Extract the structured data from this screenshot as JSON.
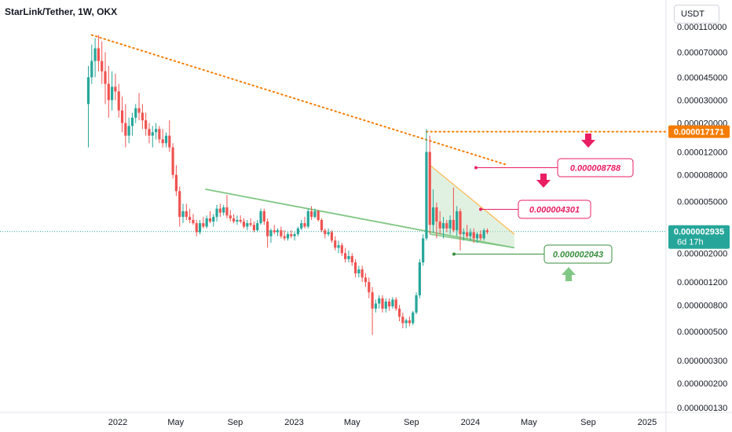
{
  "header": {
    "symbol_title": "StarLink/Tether, 1W, OKX",
    "currency": "USDT"
  },
  "colors": {
    "up": "#26a69a",
    "down": "#ef5350",
    "pink": "#e91e63",
    "green": "#388e3c",
    "orange": "#f57c00",
    "trendline": "#81c784",
    "price_line": "#26a69a"
  },
  "chart_data": {
    "type": "candlestick",
    "title": "",
    "y_scale": "log",
    "ylim": [
      1.15e-07,
      0.000125
    ],
    "y_ticks": [
      {
        "value": 0.00011,
        "label": "0.000110000"
      },
      {
        "value": 7e-05,
        "label": "0.000070000"
      },
      {
        "value": 4.5e-05,
        "label": "0.000045000"
      },
      {
        "value": 3e-05,
        "label": "0.000030000"
      },
      {
        "value": 2e-05,
        "label": "0.000020000"
      },
      {
        "value": 1.2e-05,
        "label": "0.000012000"
      },
      {
        "value": 8e-06,
        "label": "0.000008000"
      },
      {
        "value": 5e-06,
        "label": "0.000005000"
      },
      {
        "value": 2e-06,
        "label": "0.000002000"
      },
      {
        "value": 1.2e-06,
        "label": "0.000001200"
      },
      {
        "value": 8e-07,
        "label": "0.000000800"
      },
      {
        "value": 5e-07,
        "label": "0.000000500"
      },
      {
        "value": 3e-07,
        "label": "0.000000300"
      },
      {
        "value": 2e-07,
        "label": "0.000000200"
      },
      {
        "value": 1.3e-07,
        "label": "0.000000130"
      }
    ],
    "x_ticks": [
      {
        "date": "2022-01-01",
        "label": "2022"
      },
      {
        "date": "2022-05-01",
        "label": "May"
      },
      {
        "date": "2022-09-01",
        "label": "Sep"
      },
      {
        "date": "2023-01-01",
        "label": "2023"
      },
      {
        "date": "2023-05-01",
        "label": "May"
      },
      {
        "date": "2023-09-01",
        "label": "Sep"
      },
      {
        "date": "2024-01-01",
        "label": "2024"
      },
      {
        "date": "2024-05-01",
        "label": "May"
      },
      {
        "date": "2024-09-01",
        "label": "Sep"
      },
      {
        "date": "2025-01-01",
        "label": "2025"
      }
    ],
    "candles": [
      [
        "2021-11-01",
        2.8e-05,
        5.5e-05,
        1.3e-05,
        4.5e-05
      ],
      [
        "2021-11-08",
        4.5e-05,
        8e-05,
        4e-05,
        6e-05
      ],
      [
        "2021-11-15",
        6e-05,
        9e-05,
        4.5e-05,
        7.5e-05
      ],
      [
        "2021-11-22",
        7.5e-05,
        9.5e-05,
        5e-05,
        6e-05
      ],
      [
        "2021-11-29",
        6e-05,
        8.5e-05,
        4e-05,
        5e-05
      ],
      [
        "2021-12-06",
        5e-05,
        7e-05,
        2.8e-05,
        4e-05
      ],
      [
        "2021-12-13",
        4e-05,
        5.5e-05,
        2.2e-05,
        3e-05
      ],
      [
        "2021-12-20",
        3e-05,
        5e-05,
        2.5e-05,
        3.8e-05
      ],
      [
        "2021-12-27",
        3.8e-05,
        4.8e-05,
        3e-05,
        3.5e-05
      ],
      [
        "2022-01-03",
        3.5e-05,
        4e-05,
        2.2e-05,
        2.5e-05
      ],
      [
        "2022-01-10",
        2.5e-05,
        3.2e-05,
        1.7e-05,
        2e-05
      ],
      [
        "2022-01-17",
        2e-05,
        2.8e-05,
        1.3e-05,
        1.6e-05
      ],
      [
        "2022-01-24",
        1.6e-05,
        2.2e-05,
        1.4e-05,
        1.9e-05
      ],
      [
        "2022-01-31",
        1.9e-05,
        2.4e-05,
        1.6e-05,
        2.2e-05
      ],
      [
        "2022-02-07",
        2.2e-05,
        2.8e-05,
        2e-05,
        2.6e-05
      ],
      [
        "2022-02-14",
        2.6e-05,
        3.4e-05,
        2.1e-05,
        2.4e-05
      ],
      [
        "2022-02-21",
        2.4e-05,
        2.8e-05,
        1.8e-05,
        2.1e-05
      ],
      [
        "2022-02-28",
        2.1e-05,
        2.4e-05,
        1.6e-05,
        1.8e-05
      ],
      [
        "2022-03-07",
        1.8e-05,
        2e-05,
        1.4e-05,
        1.6e-05
      ],
      [
        "2022-03-14",
        1.6e-05,
        1.9e-05,
        1.3e-05,
        1.7e-05
      ],
      [
        "2022-03-21",
        1.7e-05,
        2e-05,
        1.5e-05,
        1.8e-05
      ],
      [
        "2022-03-28",
        1.8e-05,
        1.9e-05,
        1.4e-05,
        1.5e-05
      ],
      [
        "2022-04-04",
        1.5e-05,
        1.8e-05,
        1.3e-05,
        1.4e-05
      ],
      [
        "2022-04-11",
        1.4e-05,
        1.7e-05,
        1.3e-05,
        1.6e-05
      ],
      [
        "2022-04-18",
        1.6e-05,
        2.1e-05,
        1.2e-05,
        1.3e-05
      ],
      [
        "2022-04-25",
        1.3e-05,
        1.4e-05,
        7.5e-06,
        8e-06
      ],
      [
        "2022-05-02",
        8e-06,
        9.5e-06,
        5.5e-06,
        6e-06
      ],
      [
        "2022-05-09",
        6e-06,
        6.5e-06,
        3.2e-06,
        3.8e-06
      ],
      [
        "2022-05-16",
        3.8e-06,
        4.8e-06,
        3.4e-06,
        4.2e-06
      ],
      [
        "2022-05-23",
        4.2e-06,
        4.8e-06,
        3.6e-06,
        3.8e-06
      ],
      [
        "2022-05-30",
        3.8e-06,
        4.4e-06,
        3.4e-06,
        3.6e-06
      ],
      [
        "2022-06-06",
        3.6e-06,
        4e-06,
        3.3e-06,
        3.4e-06
      ],
      [
        "2022-06-13",
        3.4e-06,
        3.6e-06,
        2.7e-06,
        2.9e-06
      ],
      [
        "2022-06-20",
        2.9e-06,
        3.6e-06,
        2.8e-06,
        3.4e-06
      ],
      [
        "2022-06-27",
        3.4e-06,
        3.8e-06,
        3.1e-06,
        3.2e-06
      ],
      [
        "2022-07-04",
        3.2e-06,
        3.9e-06,
        3.1e-06,
        3.7e-06
      ],
      [
        "2022-07-11",
        3.7e-06,
        4.2e-06,
        3.4e-06,
        3.5e-06
      ],
      [
        "2022-07-18",
        3.5e-06,
        4e-06,
        3.2e-06,
        3.8e-06
      ],
      [
        "2022-07-25",
        3.8e-06,
        4.7e-06,
        3.5e-06,
        4.4e-06
      ],
      [
        "2022-08-01",
        4.4e-06,
        4.8e-06,
        3.8e-06,
        4.1e-06
      ],
      [
        "2022-08-08",
        4.1e-06,
        4.7e-06,
        3.9e-06,
        4.5e-06
      ],
      [
        "2022-08-15",
        4.5e-06,
        5.6e-06,
        3.7e-06,
        3.9e-06
      ],
      [
        "2022-08-22",
        3.9e-06,
        4.3e-06,
        3.5e-06,
        3.7e-06
      ],
      [
        "2022-08-29",
        3.7e-06,
        4e-06,
        3.4e-06,
        3.5e-06
      ],
      [
        "2022-09-05",
        3.5e-06,
        3.9e-06,
        3.3e-06,
        3.6e-06
      ],
      [
        "2022-09-12",
        3.6e-06,
        3.9e-06,
        3.4e-06,
        3.5e-06
      ],
      [
        "2022-09-19",
        3.5e-06,
        3.7e-06,
        3.1e-06,
        3.2e-06
      ],
      [
        "2022-09-26",
        3.2e-06,
        3.6e-06,
        3e-06,
        3.4e-06
      ],
      [
        "2022-10-03",
        3.4e-06,
        3.7e-06,
        3.2e-06,
        3.3e-06
      ],
      [
        "2022-10-10",
        3.3e-06,
        3.5e-06,
        2.9e-06,
        3e-06
      ],
      [
        "2022-10-17",
        3e-06,
        3.6e-06,
        2.9e-06,
        3.4e-06
      ],
      [
        "2022-10-24",
        3.4e-06,
        4.4e-06,
        3.3e-06,
        4.2e-06
      ],
      [
        "2022-10-31",
        4.2e-06,
        4.4e-06,
        3.3e-06,
        3.5e-06
      ],
      [
        "2022-11-07",
        3.5e-06,
        3.7e-06,
        2.2e-06,
        2.7e-06
      ],
      [
        "2022-11-14",
        2.7e-06,
        3.1e-06,
        2.4e-06,
        3e-06
      ],
      [
        "2022-11-21",
        3e-06,
        3.3e-06,
        2.8e-06,
        2.9e-06
      ],
      [
        "2022-11-28",
        2.9e-06,
        3.1e-06,
        2.7e-06,
        3e-06
      ],
      [
        "2022-12-05",
        3e-06,
        3.2e-06,
        2.6e-06,
        2.7e-06
      ],
      [
        "2022-12-12",
        2.7e-06,
        3e-06,
        2.5e-06,
        2.6e-06
      ],
      [
        "2022-12-19",
        2.6e-06,
        2.9e-06,
        2.5e-06,
        2.8e-06
      ],
      [
        "2022-12-26",
        2.8e-06,
        3e-06,
        2.6e-06,
        2.7e-06
      ],
      [
        "2023-01-02",
        2.7e-06,
        2.9e-06,
        2.5e-06,
        2.8e-06
      ],
      [
        "2023-01-09",
        2.8e-06,
        3.2e-06,
        2.7e-06,
        3.1e-06
      ],
      [
        "2023-01-16",
        3.1e-06,
        3.6e-06,
        3e-06,
        3.4e-06
      ],
      [
        "2023-01-23",
        3.4e-06,
        3.8e-06,
        3.1e-06,
        3.2e-06
      ],
      [
        "2023-01-30",
        3.2e-06,
        4.4e-06,
        3.1e-06,
        4.2e-06
      ],
      [
        "2023-02-06",
        4.2e-06,
        4.6e-06,
        3.6e-06,
        3.8e-06
      ],
      [
        "2023-02-13",
        3.8e-06,
        4.4e-06,
        3.7e-06,
        4.2e-06
      ],
      [
        "2023-02-20",
        4.2e-06,
        4.3e-06,
        3.5e-06,
        3.6e-06
      ],
      [
        "2023-02-27",
        3.6e-06,
        3.7e-06,
        2.9e-06,
        3e-06
      ],
      [
        "2023-03-06",
        3e-06,
        3.1e-06,
        2.6e-06,
        2.8e-06
      ],
      [
        "2023-03-13",
        2.8e-06,
        3.1e-06,
        2.7e-06,
        2.9e-06
      ],
      [
        "2023-03-20",
        2.9e-06,
        3e-06,
        2.4e-06,
        2.5e-06
      ],
      [
        "2023-03-27",
        2.5e-06,
        2.7e-06,
        2.1e-06,
        2.2e-06
      ],
      [
        "2023-04-03",
        2.2e-06,
        2.5e-06,
        2e-06,
        2.3e-06
      ],
      [
        "2023-04-10",
        2.3e-06,
        2.4e-06,
        1.9e-06,
        2e-06
      ],
      [
        "2023-04-17",
        2e-06,
        2.2e-06,
        1.7e-06,
        1.8e-06
      ],
      [
        "2023-04-24",
        1.8e-06,
        2.1e-06,
        1.7e-06,
        1.9e-06
      ],
      [
        "2023-05-01",
        1.9e-06,
        2e-06,
        1.6e-06,
        1.7e-06
      ],
      [
        "2023-05-08",
        1.7e-06,
        1.8e-06,
        1.3e-06,
        1.4e-06
      ],
      [
        "2023-05-15",
        1.4e-06,
        1.6e-06,
        1.3e-06,
        1.5e-06
      ],
      [
        "2023-05-22",
        1.5e-06,
        1.6e-06,
        1.2e-06,
        1.3e-06
      ],
      [
        "2023-05-29",
        1.3e-06,
        1.4e-06,
        1.1e-06,
        1.2e-06
      ],
      [
        "2023-06-05",
        1.2e-06,
        1.3e-06,
        9e-07,
        1e-06
      ],
      [
        "2023-06-12",
        1e-06,
        1.1e-06,
        4.7e-07,
        7.5e-07
      ],
      [
        "2023-06-19",
        7.5e-07,
        8.8e-07,
        7e-07,
        8.2e-07
      ],
      [
        "2023-06-26",
        8.2e-07,
        9.5e-07,
        7.5e-07,
        9e-07
      ],
      [
        "2023-07-03",
        9e-07,
        9.5e-07,
        7e-07,
        7.5e-07
      ],
      [
        "2023-07-10",
        7.5e-07,
        9e-07,
        7e-07,
        8.5e-07
      ],
      [
        "2023-07-17",
        8.5e-07,
        9e-07,
        7.2e-07,
        7.8e-07
      ],
      [
        "2023-07-24",
        7.8e-07,
        9.2e-07,
        7.5e-07,
        8.8e-07
      ],
      [
        "2023-07-31",
        8.8e-07,
        9.2e-07,
        7.2e-07,
        7.5e-07
      ],
      [
        "2023-08-07",
        7.5e-07,
        8e-07,
        6e-07,
        6.5e-07
      ],
      [
        "2023-08-14",
        6.5e-07,
        7e-07,
        5.3e-07,
        5.8e-07
      ],
      [
        "2023-08-21",
        5.8e-07,
        6.3e-07,
        5.3e-07,
        6.1e-07
      ],
      [
        "2023-08-28",
        6.1e-07,
        6.5e-07,
        5.5e-07,
        5.8e-07
      ],
      [
        "2023-09-04",
        5.8e-07,
        7.2e-07,
        5.6e-07,
        7e-07
      ],
      [
        "2023-09-11",
        7e-07,
        1e-06,
        6.8e-07,
        9.5e-07
      ],
      [
        "2023-09-18",
        9.5e-07,
        1.8e-06,
        9e-07,
        1.7e-06
      ],
      [
        "2023-09-25",
        1.7e-06,
        2.8e-06,
        1.6e-06,
        2.6e-06
      ],
      [
        "2023-10-02",
        2.6e-06,
        1.8e-05,
        2.5e-06,
        1.2e-05
      ],
      [
        "2023-10-09",
        1.2e-05,
        1.6e-05,
        2.8e-06,
        3.3e-06
      ],
      [
        "2023-10-16",
        3.3e-06,
        6.2e-06,
        2.9e-06,
        4.5e-06
      ],
      [
        "2023-10-23",
        4.5e-06,
        4.9e-06,
        2.6e-06,
        3.5e-06
      ],
      [
        "2023-10-30",
        3.5e-06,
        4.2e-06,
        2.8e-06,
        3.1e-06
      ],
      [
        "2023-11-06",
        3.1e-06,
        3.8e-06,
        2.6e-06,
        3.4e-06
      ],
      [
        "2023-11-13",
        3.4e-06,
        3.6e-06,
        2.9e-06,
        3.1e-06
      ],
      [
        "2023-11-20",
        3.1e-06,
        3.9e-06,
        2.8e-06,
        3.6e-06
      ],
      [
        "2023-11-27",
        3.6e-06,
        6.4e-06,
        2.9e-06,
        3e-06
      ],
      [
        "2023-12-04",
        3e-06,
        4.6e-06,
        2.7e-06,
        4.2e-06
      ],
      [
        "2023-12-11",
        4.2e-06,
        4.4e-06,
        2.1e-06,
        2.8e-06
      ],
      [
        "2023-12-18",
        2.8e-06,
        3.1e-06,
        2.5e-06,
        2.9e-06
      ],
      [
        "2023-12-25",
        2.9e-06,
        3.3e-06,
        2.6e-06,
        2.7e-06
      ],
      [
        "2024-01-01",
        2.7e-06,
        3.1e-06,
        2.5e-06,
        2.9e-06
      ],
      [
        "2024-01-08",
        2.9e-06,
        3.1e-06,
        2.4e-06,
        2.6e-06
      ],
      [
        "2024-01-15",
        2.6e-06,
        2.9e-06,
        2.4e-06,
        2.8e-06
      ],
      [
        "2024-01-22",
        2.8e-06,
        3e-06,
        2.5e-06,
        2.6e-06
      ],
      [
        "2024-01-29",
        2.6e-06,
        3.1e-06,
        2.5e-06,
        3e-06
      ],
      [
        "2024-02-05",
        3e-06,
        3.1e-06,
        2.8e-06,
        2.9e-06
      ]
    ],
    "current_price": {
      "value": 2.935e-06,
      "label": "0.000002935",
      "countdown": "6d 17h"
    },
    "orange_level": {
      "value": 1.7171e-05,
      "label": "0.000017171"
    },
    "trendlines": [
      {
        "name": "orange-descending-resistance",
        "from": [
          "2021-11-08",
          9.5e-05
        ],
        "to": [
          "2024-03-18",
          9.5e-06
        ],
        "style": "dotted"
      },
      {
        "name": "green-descending-support",
        "from": [
          "2022-07-01",
          6.2e-06
        ],
        "to": [
          "2024-04-01",
          2.2e-06
        ],
        "style": "solid"
      }
    ],
    "wedge": {
      "upper": {
        "from": [
          "2023-10-09",
          9.5e-06
        ],
        "to": [
          "2024-04-01",
          2.8e-06
        ]
      },
      "lower": {
        "from": [
          "2023-10-09",
          2.8e-06
        ],
        "to": [
          "2024-04-01",
          2.2e-06
        ]
      }
    },
    "targets": [
      {
        "label": "0.000008788",
        "value": 8.788e-06,
        "color": "pink",
        "arrow": "down"
      },
      {
        "label": "0.000004301",
        "value": 4.301e-06,
        "color": "pink",
        "arrow": "down"
      },
      {
        "label": "0.000002043",
        "value": 2.043e-06,
        "color": "green",
        "arrow": "up"
      }
    ]
  }
}
